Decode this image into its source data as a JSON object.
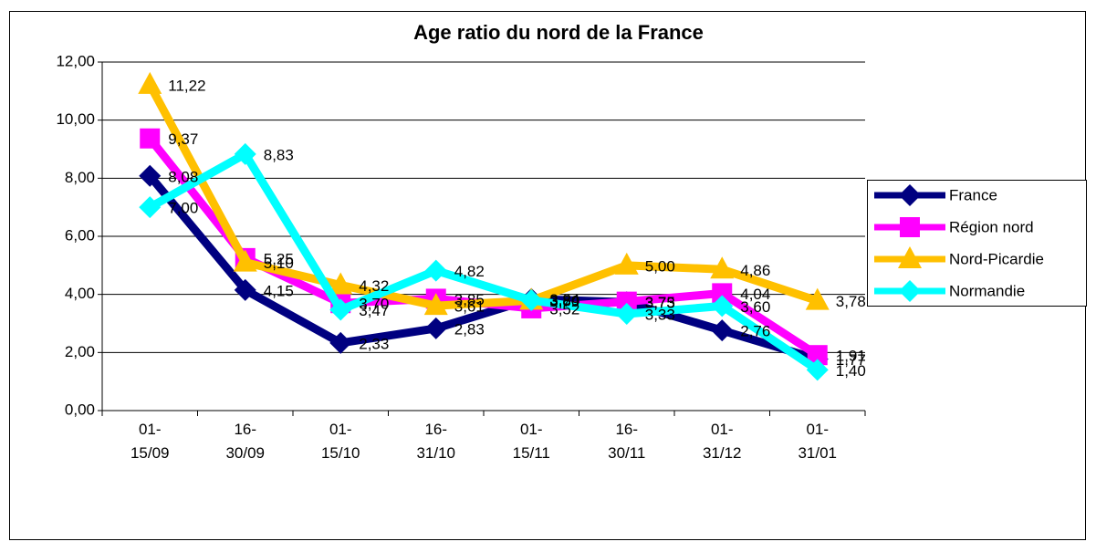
{
  "chart_data": {
    "type": "line",
    "title": "Age ratio du nord de la France",
    "categories": [
      "01-15/09",
      "16-30/09",
      "01-15/10",
      "16-31/10",
      "01-15/11",
      "16-30/11",
      "01-31/12",
      "01-31/01"
    ],
    "series": [
      {
        "name": "France",
        "color": "#000080",
        "marker": "diamond",
        "values": [
          8.08,
          4.15,
          2.33,
          2.83,
          3.84,
          3.73,
          2.76,
          1.77
        ],
        "value_labels": [
          "8,08",
          "4,15",
          "2,33",
          "2,83",
          "3,84",
          "3,73",
          "2,76",
          "1,77"
        ]
      },
      {
        "name": "Région nord",
        "color": "#ff00ff",
        "marker": "square",
        "values": [
          9.37,
          5.25,
          3.7,
          3.85,
          3.52,
          3.75,
          4.04,
          1.91
        ],
        "value_labels": [
          "9,37",
          "5,25",
          "3,70",
          "3,85",
          "3,52",
          "3,75",
          "4,04",
          "1,91"
        ]
      },
      {
        "name": "Nord-Picardie",
        "color": "#ffc000",
        "marker": "triangle",
        "values": [
          11.22,
          5.1,
          4.32,
          3.61,
          3.79,
          5.0,
          4.86,
          3.78
        ],
        "value_labels": [
          "11,22",
          "5,10",
          "4,32",
          "3,61",
          "3,79",
          "5,00",
          "4,86",
          "3,78"
        ]
      },
      {
        "name": "Normandie",
        "color": "#00ffff",
        "marker": "diamond",
        "values": [
          7.0,
          8.83,
          3.47,
          4.82,
          3.8,
          3.33,
          3.6,
          1.4
        ],
        "value_labels": [
          "7,00",
          "8,83",
          "3,47",
          "4,82",
          "3,80",
          "3,33",
          "3,60",
          "1,40"
        ]
      }
    ],
    "ylim": [
      0,
      12
    ],
    "yticks": [
      {
        "value": 0,
        "label": "0,00"
      },
      {
        "value": 2,
        "label": "2,00"
      },
      {
        "value": 4,
        "label": "4,00"
      },
      {
        "value": 6,
        "label": "6,00"
      },
      {
        "value": 8,
        "label": "8,00"
      },
      {
        "value": 10,
        "label": "10,00"
      },
      {
        "value": 12,
        "label": "12,00"
      }
    ],
    "grid": true,
    "legend": "right"
  }
}
